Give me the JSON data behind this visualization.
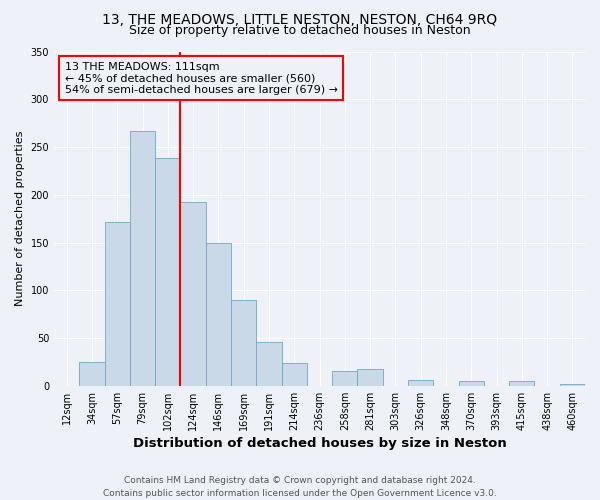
{
  "title": "13, THE MEADOWS, LITTLE NESTON, NESTON, CH64 9RQ",
  "subtitle": "Size of property relative to detached houses in Neston",
  "xlabel": "Distribution of detached houses by size in Neston",
  "ylabel": "Number of detached properties",
  "bin_labels": [
    "12sqm",
    "34sqm",
    "57sqm",
    "79sqm",
    "102sqm",
    "124sqm",
    "146sqm",
    "169sqm",
    "191sqm",
    "214sqm",
    "236sqm",
    "258sqm",
    "281sqm",
    "303sqm",
    "326sqm",
    "348sqm",
    "370sqm",
    "393sqm",
    "415sqm",
    "438sqm",
    "460sqm"
  ],
  "bar_heights": [
    0,
    25,
    172,
    267,
    238,
    192,
    150,
    90,
    46,
    24,
    0,
    15,
    18,
    0,
    6,
    0,
    5,
    0,
    5,
    0,
    2
  ],
  "bar_color": "#c9d9e8",
  "bar_edge_color": "#6fa8c8",
  "vline_color": "red",
  "ylim": [
    0,
    350
  ],
  "yticks": [
    0,
    50,
    100,
    150,
    200,
    250,
    300,
    350
  ],
  "annotation_title": "13 THE MEADOWS: 111sqm",
  "annotation_line1": "← 45% of detached houses are smaller (560)",
  "annotation_line2": "54% of semi-detached houses are larger (679) →",
  "annotation_box_color": "red",
  "footer_line1": "Contains HM Land Registry data © Crown copyright and database right 2024.",
  "footer_line2": "Contains public sector information licensed under the Open Government Licence v3.0.",
  "bg_color": "#eef2f8",
  "grid_color": "#ffffff",
  "title_fontsize": 10,
  "subtitle_fontsize": 9,
  "ylabel_fontsize": 8,
  "xlabel_fontsize": 9.5,
  "tick_fontsize": 7,
  "annotation_fontsize": 8,
  "footer_fontsize": 6.5,
  "vline_pos": 4.5
}
